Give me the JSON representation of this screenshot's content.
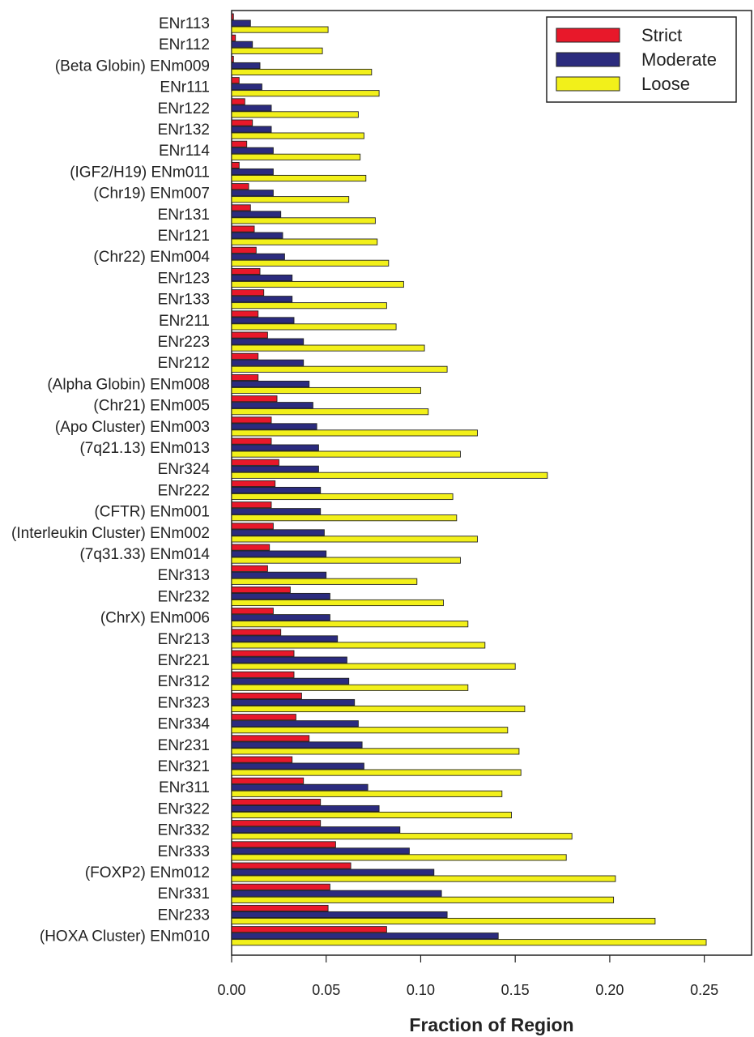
{
  "chart_data": {
    "type": "bar",
    "orientation": "horizontal",
    "title": "",
    "xlabel": "Fraction of Region",
    "ylabel": "",
    "xlim": [
      0,
      0.275
    ],
    "xticks": [
      "0.00",
      "0.05",
      "0.10",
      "0.15",
      "0.20",
      "0.25"
    ],
    "legend_position": "top-right",
    "categories": [
      "ENr113",
      "ENr112",
      "(Beta Globin) ENm009",
      "ENr111",
      "ENr122",
      "ENr132",
      "ENr114",
      "(IGF2/H19) ENm011",
      "(Chr19) ENm007",
      "ENr131",
      "ENr121",
      "(Chr22) ENm004",
      "ENr123",
      "ENr133",
      "ENr211",
      "ENr223",
      "ENr212",
      "(Alpha Globin) ENm008",
      "(Chr21) ENm005",
      "(Apo Cluster) ENm003",
      "(7q21.13) ENm013",
      "ENr324",
      "ENr222",
      "(CFTR) ENm001",
      "(Interleukin Cluster) ENm002",
      "(7q31.33) ENm014",
      "ENr313",
      "ENr232",
      "(ChrX) ENm006",
      "ENr213",
      "ENr221",
      "ENr312",
      "ENr323",
      "ENr334",
      "ENr231",
      "ENr321",
      "ENr311",
      "ENr322",
      "ENr332",
      "ENr333",
      "(FOXP2) ENm012",
      "ENr331",
      "ENr233",
      "(HOXA Cluster) ENm010"
    ],
    "series": [
      {
        "name": "Strict",
        "color": "#e8182a",
        "values": [
          0.001,
          0.002,
          0.001,
          0.004,
          0.007,
          0.011,
          0.008,
          0.004,
          0.009,
          0.01,
          0.012,
          0.013,
          0.015,
          0.017,
          0.014,
          0.019,
          0.014,
          0.014,
          0.024,
          0.021,
          0.021,
          0.025,
          0.023,
          0.021,
          0.022,
          0.02,
          0.019,
          0.031,
          0.022,
          0.026,
          0.033,
          0.033,
          0.037,
          0.034,
          0.041,
          0.032,
          0.038,
          0.047,
          0.047,
          0.055,
          0.063,
          0.052,
          0.051,
          0.082
        ]
      },
      {
        "name": "Moderate",
        "color": "#2b2b7e",
        "values": [
          0.01,
          0.011,
          0.015,
          0.016,
          0.021,
          0.021,
          0.022,
          0.022,
          0.022,
          0.026,
          0.027,
          0.028,
          0.032,
          0.032,
          0.033,
          0.038,
          0.038,
          0.041,
          0.043,
          0.045,
          0.046,
          0.046,
          0.047,
          0.047,
          0.049,
          0.05,
          0.05,
          0.052,
          0.052,
          0.056,
          0.061,
          0.062,
          0.065,
          0.067,
          0.069,
          0.07,
          0.072,
          0.078,
          0.089,
          0.094,
          0.107,
          0.111,
          0.114,
          0.141
        ]
      },
      {
        "name": "Loose",
        "color": "#f2f01a",
        "values": [
          0.051,
          0.048,
          0.074,
          0.078,
          0.067,
          0.07,
          0.068,
          0.071,
          0.062,
          0.076,
          0.077,
          0.083,
          0.091,
          0.082,
          0.087,
          0.102,
          0.114,
          0.1,
          0.104,
          0.13,
          0.121,
          0.167,
          0.117,
          0.119,
          0.13,
          0.121,
          0.098,
          0.112,
          0.125,
          0.134,
          0.15,
          0.125,
          0.155,
          0.146,
          0.152,
          0.153,
          0.143,
          0.148,
          0.18,
          0.177,
          0.203,
          0.202,
          0.224,
          0.251
        ]
      }
    ]
  }
}
